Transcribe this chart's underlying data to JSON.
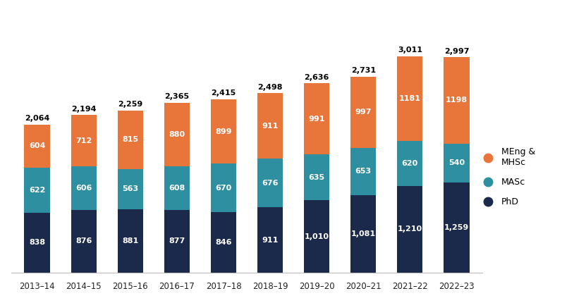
{
  "years": [
    "2013–14",
    "2014–15",
    "2015–16",
    "2016–17",
    "2017–18",
    "2018–19",
    "2019–20",
    "2020–21",
    "2021–22",
    "2022–23"
  ],
  "phd": [
    838,
    876,
    881,
    877,
    846,
    911,
    1010,
    1081,
    1210,
    1259
  ],
  "masc": [
    622,
    606,
    563,
    608,
    670,
    676,
    635,
    653,
    620,
    540
  ],
  "meng": [
    604,
    712,
    815,
    880,
    899,
    911,
    991,
    997,
    1181,
    1198
  ],
  "totals": [
    2064,
    2194,
    2259,
    2365,
    2415,
    2498,
    2636,
    2731,
    3011,
    2997
  ],
  "color_phd": "#1b2a4a",
  "color_masc": "#2d8fa0",
  "color_meng": "#e8763a",
  "background": "#ffffff",
  "label_phd": "PhD",
  "label_masc": "MASc",
  "label_meng": "MEng &\nMHSc",
  "bar_width": 0.55,
  "ylim": [
    0,
    3500
  ],
  "label_fontsize": 8.0,
  "total_fontsize": 8.0,
  "tick_fontsize": 8.5,
  "legend_fontsize": 9
}
